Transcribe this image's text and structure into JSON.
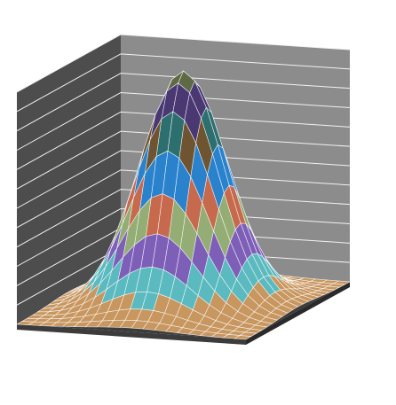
{
  "chart_data": {
    "type": "surface3d",
    "title": "",
    "xlabel": "",
    "ylabel": "",
    "zlabel": "",
    "function": "gaussian bell",
    "x_range": [
      -3,
      3
    ],
    "y_range": [
      -3,
      3
    ],
    "z_range": [
      0,
      1
    ],
    "grid": 20,
    "sigma": 1.05,
    "band_count": 10,
    "band_colors": [
      "#c8965f",
      "#5bbabf",
      "#7e5fb8",
      "#93ad74",
      "#c6694d",
      "#2a82cc",
      "#6e5430",
      "#2d6e6e",
      "#4a3873",
      "#5e6a45"
    ],
    "legend": "none",
    "walls": {
      "left": "#4d4d4d",
      "back": "#8c8c8c",
      "floor": "#3c3c3c"
    },
    "gridlines": true
  }
}
